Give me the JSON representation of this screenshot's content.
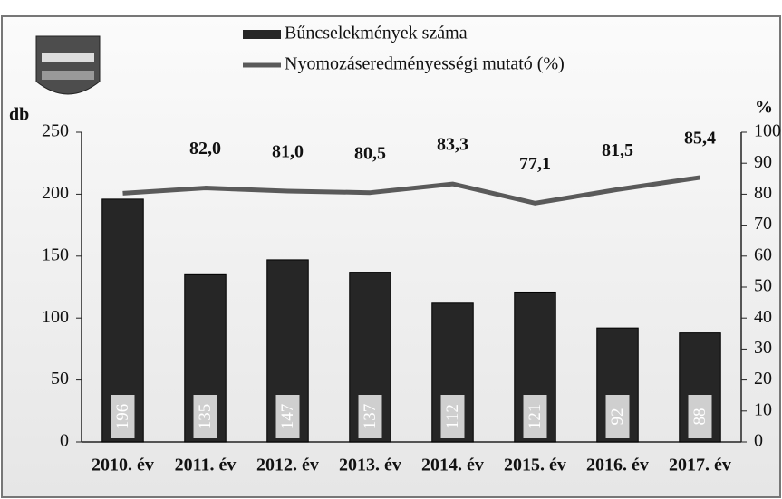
{
  "chart_data": {
    "type": "bar-line",
    "categories": [
      "2010. év",
      "2011. év",
      "2012. év",
      "2013. év",
      "2014. év",
      "2015. év",
      "2016. év",
      "2017. év"
    ],
    "series": [
      {
        "name": "Bűncselekmények száma",
        "type": "bar",
        "color": "#262626",
        "values": [
          196,
          135,
          147,
          137,
          112,
          121,
          92,
          88
        ]
      },
      {
        "name": "Nyomozáseredményességi mutató (%)",
        "type": "line",
        "axis": "y2",
        "color": "#5a5a5a",
        "values": [
          80.3,
          82.0,
          81.0,
          80.5,
          83.3,
          77.1,
          81.5,
          85.4
        ],
        "value_labels": [
          null,
          "82,0",
          "81,0",
          "80,5",
          "83,3",
          "77,1",
          "81,5",
          "85,4"
        ]
      }
    ],
    "ylabel": "db",
    "y2label": "%",
    "ylim": [
      0,
      250
    ],
    "yticks": [
      0,
      50,
      100,
      150,
      200,
      250
    ],
    "y2lim": [
      0,
      100
    ],
    "y2ticks": [
      0,
      10,
      20,
      30,
      40,
      50,
      60,
      70,
      80,
      90,
      100
    ],
    "grid": false
  }
}
